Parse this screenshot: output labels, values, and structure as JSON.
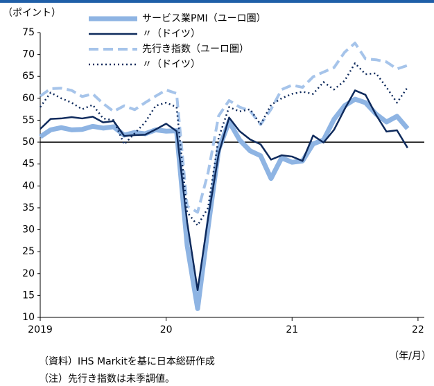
{
  "chart_data": {
    "type": "line",
    "y_label": "（ポイント）",
    "x_unit": "（年/月）",
    "notes": [
      "（資料）IHS Markitを基に日本総研作成",
      "（注）先行き指数は未季調値。"
    ],
    "x": [
      2019.0,
      2019.083,
      2019.167,
      2019.25,
      2019.333,
      2019.417,
      2019.5,
      2019.583,
      2019.667,
      2019.75,
      2019.833,
      2019.917,
      2020.0,
      2020.083,
      2020.167,
      2020.25,
      2020.333,
      2020.417,
      2020.5,
      2020.583,
      2020.667,
      2020.75,
      2020.833,
      2020.917,
      2021.0,
      2021.083,
      2021.167,
      2021.25,
      2021.333,
      2021.417,
      2021.5,
      2021.583,
      2021.667,
      2021.75,
      2021.833,
      2021.917
    ],
    "series": [
      {
        "name": "サービス業PMI（ユーロ圏）",
        "color": "#8eb4e3",
        "style": "thick",
        "values": [
          51.2,
          52.8,
          53.3,
          52.8,
          52.9,
          53.6,
          53.2,
          53.5,
          51.6,
          52.2,
          51.9,
          52.8,
          52.5,
          52.6,
          26.4,
          12.0,
          30.5,
          48.3,
          54.7,
          50.5,
          48.0,
          46.9,
          41.7,
          46.4,
          45.4,
          45.7,
          49.6,
          50.5,
          55.2,
          58.3,
          59.8,
          59.0,
          56.4,
          54.6,
          55.9,
          53.1
        ]
      },
      {
        "name": "〃（ドイツ）",
        "color": "#0e2a5c",
        "style": "solid",
        "values": [
          53.0,
          55.3,
          55.4,
          55.7,
          55.4,
          55.8,
          54.5,
          54.8,
          51.4,
          51.6,
          51.7,
          52.9,
          54.2,
          52.5,
          31.7,
          16.2,
          32.6,
          47.3,
          55.6,
          52.5,
          50.6,
          49.5,
          46.0,
          47.0,
          46.7,
          45.7,
          51.5,
          49.9,
          52.8,
          57.5,
          61.8,
          60.8,
          56.2,
          52.4,
          52.7,
          48.7
        ]
      },
      {
        "name": "先行き指数（ユーロ圏）",
        "color": "#a6c4ea",
        "style": "dashed",
        "values": [
          60.5,
          62.2,
          62.3,
          61.8,
          60.4,
          61.0,
          58.8,
          57.0,
          58.3,
          57.4,
          59.0,
          60.5,
          61.9,
          61.1,
          35.4,
          34.0,
          43.0,
          56.0,
          59.5,
          58.0,
          57.1,
          54.0,
          57.5,
          62.0,
          63.0,
          62.5,
          64.9,
          66.0,
          67.0,
          70.5,
          72.6,
          69.0,
          68.8,
          68.3,
          66.7,
          67.5
        ]
      },
      {
        "name": "〃（ドイツ）",
        "color": "#0e2a5c",
        "style": "dotted",
        "values": [
          58.0,
          61.3,
          60.0,
          59.0,
          57.5,
          58.5,
          55.4,
          55.0,
          49.5,
          52.0,
          54.5,
          58.3,
          59.0,
          58.0,
          34.0,
          31.0,
          35.0,
          51.0,
          58.0,
          57.0,
          57.5,
          54.0,
          58.5,
          60.0,
          61.0,
          61.5,
          61.0,
          63.7,
          62.0,
          64.0,
          68.0,
          65.5,
          65.7,
          62.5,
          59.0,
          62.5
        ]
      }
    ],
    "hline": 50,
    "xlim": [
      2019,
      2022.05
    ],
    "xticks": [
      2019,
      {
        "value": 2020,
        "label": "20"
      },
      {
        "value": 2021,
        "label": "21"
      },
      {
        "value": 2022,
        "label": "22"
      }
    ],
    "ylim": [
      10,
      75
    ],
    "yticks": [
      10,
      15,
      20,
      25,
      30,
      35,
      40,
      45,
      50,
      55,
      60,
      65,
      70,
      75
    ],
    "grid": false
  }
}
